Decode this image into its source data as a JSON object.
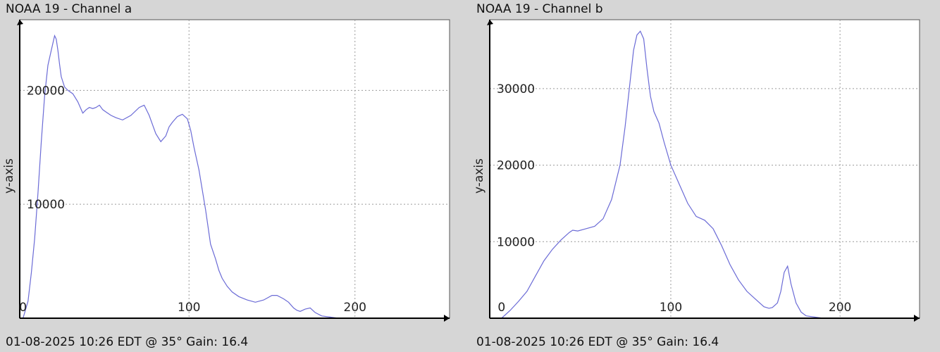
{
  "chart_data": [
    {
      "type": "line",
      "title": "NOAA 19 - Channel a",
      "footer": "01-08-2025 10:26 EDT @ 35° Gain: 16.4",
      "ylabel": "y-axis",
      "xlim": [
        -2,
        257
      ],
      "ylim": [
        0,
        26200
      ],
      "x_ticks": [
        0,
        100,
        200
      ],
      "x_tick_labels": [
        "0",
        "100",
        "200"
      ],
      "y_ticks": [
        10000,
        20000
      ],
      "y_tick_labels": [
        "10000",
        "20000"
      ],
      "grid": true,
      "color": "#6b6bd6",
      "series": [
        {
          "x": [
            0,
            3,
            5,
            7,
            9,
            11,
            13,
            15,
            17,
            19,
            20,
            21,
            22,
            23,
            25,
            27,
            30,
            33,
            36,
            38,
            40,
            42,
            44,
            46,
            48,
            50,
            53,
            56,
            60,
            65,
            70,
            73,
            76,
            78,
            80,
            83,
            86,
            88,
            90,
            93,
            96,
            99,
            101,
            103,
            106,
            110,
            113,
            116,
            118,
            120,
            123,
            126,
            130,
            135,
            140,
            145,
            150,
            153,
            157,
            160,
            163,
            165,
            167,
            170,
            173,
            176,
            180,
            185,
            190
          ],
          "y": [
            0,
            1500,
            4000,
            7000,
            11000,
            15500,
            19500,
            22200,
            23500,
            24800,
            24500,
            23500,
            22300,
            21200,
            20300,
            20000,
            19700,
            19000,
            18000,
            18300,
            18500,
            18400,
            18500,
            18700,
            18300,
            18100,
            17800,
            17600,
            17400,
            17800,
            18500,
            18700,
            17800,
            17000,
            16200,
            15500,
            16000,
            16800,
            17200,
            17700,
            17900,
            17500,
            16500,
            15000,
            13000,
            9500,
            6500,
            5200,
            4200,
            3500,
            2800,
            2300,
            1900,
            1600,
            1400,
            1600,
            2000,
            2000,
            1700,
            1400,
            900,
            700,
            600,
            800,
            900,
            500,
            200,
            100,
            0
          ]
        }
      ]
    },
    {
      "type": "line",
      "title": "NOAA 19 - Channel b",
      "footer": "01-08-2025 10:26 EDT @ 35° Gain: 16.4",
      "ylabel": "y-axis",
      "xlim": [
        -7,
        247
      ],
      "ylim": [
        0,
        39000
      ],
      "x_ticks": [
        0,
        100,
        200
      ],
      "x_tick_labels": [
        "0",
        "100",
        "200"
      ],
      "y_ticks": [
        10000,
        20000,
        30000
      ],
      "y_tick_labels": [
        "10000",
        "20000",
        "30000"
      ],
      "grid": true,
      "color": "#6b6bd6",
      "series": [
        {
          "x": [
            0,
            5,
            10,
            15,
            20,
            25,
            30,
            35,
            40,
            42,
            45,
            50,
            55,
            60,
            65,
            70,
            73,
            76,
            78,
            80,
            82,
            84,
            86,
            88,
            90,
            93,
            96,
            100,
            105,
            110,
            115,
            120,
            125,
            130,
            135,
            140,
            145,
            150,
            155,
            158,
            160,
            163,
            165,
            167,
            169,
            171,
            174,
            177,
            180,
            185,
            190
          ],
          "y": [
            0,
            1000,
            2200,
            3500,
            5500,
            7500,
            9000,
            10200,
            11200,
            11500,
            11400,
            11700,
            12000,
            13000,
            15500,
            20000,
            25000,
            31000,
            35000,
            37000,
            37500,
            36500,
            32500,
            29000,
            27000,
            25500,
            23000,
            20000,
            17500,
            15000,
            13300,
            12800,
            11700,
            9500,
            7000,
            5000,
            3500,
            2500,
            1500,
            1300,
            1400,
            2000,
            3500,
            6000,
            6800,
            4500,
            2000,
            800,
            300,
            150,
            0
          ]
        }
      ]
    }
  ]
}
